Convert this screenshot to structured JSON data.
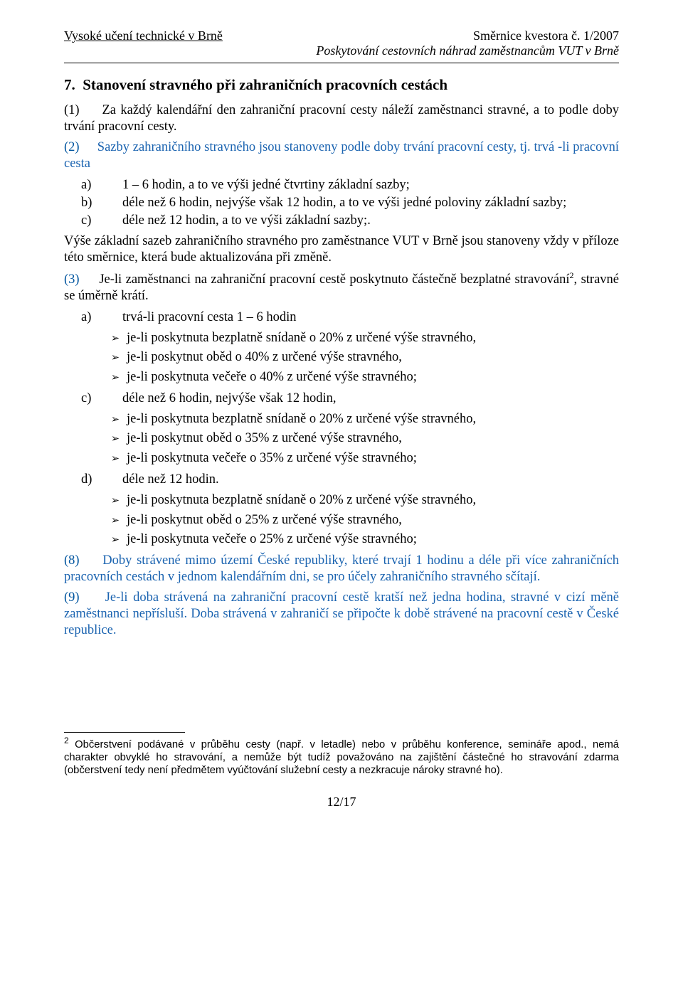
{
  "header": {
    "left": "Vysoké učení technické v Brně",
    "right": "Směrnice kvestora č. 1/2007",
    "sub": "Poskytování cestovních náhrad zaměstnancům VUT v Brně"
  },
  "section": {
    "number": "7.",
    "title": "Stanovení stravného při zahraničních pracovních cestách"
  },
  "para1": {
    "num": "(1)",
    "text": "Za každý kalendářní den zahraniční pracovní cesty náleží zaměstnanci stravné, a to podle doby trvání pracovní cesty."
  },
  "para2": {
    "num": "(2)",
    "text": "Sazby zahraničního stravného jsou stanoveny podle doby trvání pracovní cesty, tj. trvá -li pracovní cesta",
    "items": [
      {
        "label": "a)",
        "text": "1 – 6 hodin, a to ve výši jedné čtvrtiny základní sazby;"
      },
      {
        "label": "b)",
        "text": "déle než 6 hodin, nejvýše však 12 hodin, a to ve výši jedné poloviny základní sazby;"
      },
      {
        "label": "c)",
        "text": "déle než 12 hodin, a to ve výši základní sazby;."
      }
    ]
  },
  "para_after2": "Výše základní sazeb zahraničního stravného pro zaměstnance VUT v Brně jsou stanoveny vždy v příloze této směrnice, která bude aktualizována při změně.",
  "para3": {
    "num": "(3)",
    "text": "Je-li zaměstnanci na zahraniční pracovní cestě poskytnuto částečně bezplatné stravování",
    "sup": "2",
    "tail": ", stravné se úměrně krátí.",
    "a_label": "a)",
    "a_text": "trvá-li pracovní cesta  1 – 6 hodin",
    "a_bullets": [
      "je-li poskytnuta bezplatně snídaně o 20% z určené výše stravného,",
      "je-li poskytnut oběd o 40% z určené výše stravného,",
      "je-li poskytnuta večeře o 40% z určené výše stravného;"
    ],
    "c_label": "c)",
    "c_text": "déle než 6 hodin, nejvýše však 12 hodin,",
    "c_bullets": [
      "je-li poskytnuta bezplatně snídaně o 20% z určené výše stravného,",
      "je-li poskytnut oběd o 35% z určené výše stravného,",
      "je-li poskytnuta večeře o 35% z určené výše stravného;"
    ],
    "d_label": "d)",
    "d_text": "déle než 12 hodin.",
    "d_bullets": [
      "je-li poskytnuta bezplatně snídaně o 20% z určené výše stravného,",
      "je-li poskytnut oběd o 25% z určené výše stravného,",
      "je-li poskytnuta večeře o 25% z určené výše stravného;"
    ]
  },
  "para8": {
    "num": "(8)",
    "text": "Doby strávené mimo území České republiky, které trvají 1 hodinu a déle při více zahraničních pracovních cestách v jednom kalendářním dni, se pro účely zahraničního stravného sčítají."
  },
  "para9": {
    "num": "(9)",
    "text": "Je-li doba strávená na zahraniční pracovní cestě kratší než jedna hodina, stravné v cizí měně zaměstnanci nepřísluší. Doba strávená v zahraničí se připočte k době strávené na pracovní cestě v České republice."
  },
  "footnote": {
    "mark": "2",
    "text": " Občerstvení podávané v průběhu cesty (např. v letadle) nebo v průběhu konference, semináře apod., nemá charakter obvyklé ho stravování, a nemůže být tudíž považováno na zajištění částečné ho stravování zdarma (občerstvení tedy není předmětem vyúčtování služební cesty a nezkracuje nároky stravné ho)."
  },
  "page_number": "12/17",
  "bullet_glyph": "➢",
  "colors": {
    "blue": "#1a63b0",
    "num_blue": "#00559f",
    "text": "#000000"
  }
}
